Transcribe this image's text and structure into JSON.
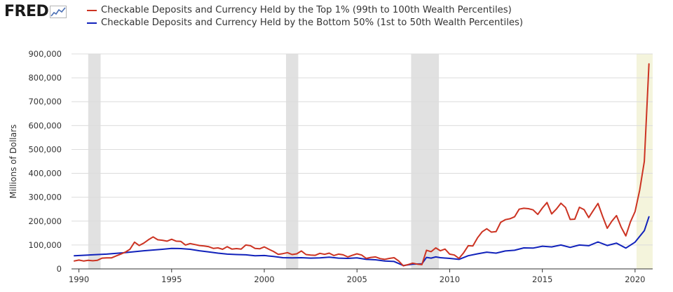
{
  "brand": {
    "logo_text": "FRED",
    "logo_icon": "line-chart-icon"
  },
  "chart_data": {
    "type": "line",
    "title": "",
    "xlabel": "",
    "ylabel": "Millions of Dollars",
    "xlim": [
      1989.6,
      2020.95
    ],
    "ylim": [
      0,
      900000
    ],
    "x_ticks": [
      "1990",
      "1995",
      "2000",
      "2005",
      "2010",
      "2015",
      "2020"
    ],
    "y_ticks": [
      "0",
      "100,000",
      "200,000",
      "300,000",
      "400,000",
      "500,000",
      "600,000",
      "700,000",
      "800,000",
      "900,000"
    ],
    "y_tick_values": [
      0,
      100000,
      200000,
      300000,
      400000,
      500000,
      600000,
      700000,
      800000,
      900000
    ],
    "grid": true,
    "legend_position": "top",
    "recessions": [
      [
        1990.5,
        1991.17
      ],
      [
        2001.17,
        2001.83
      ],
      [
        2007.92,
        2009.42
      ],
      [
        2020.08,
        2020.33
      ]
    ],
    "recession_color": "#e1e1e1",
    "latest_color": "#f4f4dc",
    "series": [
      {
        "name": "Checkable Deposits and Currency Held by the Top 1% (99th to 100th Wealth Percentiles)",
        "color": "#cc3322",
        "points": [
          [
            1989.75,
            33000
          ],
          [
            1990.0,
            37000
          ],
          [
            1990.25,
            33000
          ],
          [
            1990.5,
            36000
          ],
          [
            1990.75,
            34000
          ],
          [
            1991.0,
            36000
          ],
          [
            1991.25,
            45000
          ],
          [
            1991.5,
            46000
          ],
          [
            1991.75,
            46000
          ],
          [
            1992.0,
            54000
          ],
          [
            1992.25,
            62000
          ],
          [
            1992.5,
            70000
          ],
          [
            1992.75,
            82000
          ],
          [
            1993.0,
            112000
          ],
          [
            1993.25,
            98000
          ],
          [
            1993.5,
            108000
          ],
          [
            1993.75,
            122000
          ],
          [
            1994.0,
            134000
          ],
          [
            1994.25,
            122000
          ],
          [
            1994.5,
            120000
          ],
          [
            1994.75,
            116000
          ],
          [
            1995.0,
            124000
          ],
          [
            1995.25,
            116000
          ],
          [
            1995.5,
            115000
          ],
          [
            1995.75,
            100000
          ],
          [
            1996.0,
            106000
          ],
          [
            1996.25,
            102000
          ],
          [
            1996.5,
            98000
          ],
          [
            1996.75,
            96000
          ],
          [
            1997.0,
            93000
          ],
          [
            1997.25,
            86000
          ],
          [
            1997.5,
            88000
          ],
          [
            1997.75,
            82000
          ],
          [
            1998.0,
            93000
          ],
          [
            1998.25,
            83000
          ],
          [
            1998.5,
            85000
          ],
          [
            1998.75,
            83000
          ],
          [
            1999.0,
            100000
          ],
          [
            1999.25,
            97000
          ],
          [
            1999.5,
            86000
          ],
          [
            1999.75,
            84000
          ],
          [
            2000.0,
            92000
          ],
          [
            2000.25,
            82000
          ],
          [
            2000.5,
            73000
          ],
          [
            2000.75,
            61000
          ],
          [
            2001.0,
            64000
          ],
          [
            2001.25,
            68000
          ],
          [
            2001.5,
            60000
          ],
          [
            2001.75,
            63000
          ],
          [
            2002.0,
            75000
          ],
          [
            2002.25,
            60000
          ],
          [
            2002.5,
            58000
          ],
          [
            2002.75,
            57000
          ],
          [
            2003.0,
            65000
          ],
          [
            2003.25,
            61000
          ],
          [
            2003.5,
            66000
          ],
          [
            2003.75,
            56000
          ],
          [
            2004.0,
            62000
          ],
          [
            2004.25,
            59000
          ],
          [
            2004.5,
            50000
          ],
          [
            2004.75,
            57000
          ],
          [
            2005.0,
            63000
          ],
          [
            2005.25,
            58000
          ],
          [
            2005.5,
            44000
          ],
          [
            2005.75,
            48000
          ],
          [
            2006.0,
            50000
          ],
          [
            2006.25,
            43000
          ],
          [
            2006.5,
            40000
          ],
          [
            2006.75,
            44000
          ],
          [
            2007.0,
            47000
          ],
          [
            2007.25,
            33000
          ],
          [
            2007.5,
            13000
          ],
          [
            2007.75,
            18000
          ],
          [
            2008.0,
            24000
          ],
          [
            2008.25,
            20000
          ],
          [
            2008.5,
            18000
          ],
          [
            2008.75,
            78000
          ],
          [
            2009.0,
            72000
          ],
          [
            2009.25,
            88000
          ],
          [
            2009.5,
            76000
          ],
          [
            2009.75,
            83000
          ],
          [
            2010.0,
            62000
          ],
          [
            2010.25,
            58000
          ],
          [
            2010.5,
            44000
          ],
          [
            2010.75,
            67000
          ],
          [
            2011.0,
            97000
          ],
          [
            2011.25,
            96000
          ],
          [
            2011.5,
            130000
          ],
          [
            2011.75,
            155000
          ],
          [
            2012.0,
            168000
          ],
          [
            2012.25,
            154000
          ],
          [
            2012.5,
            156000
          ],
          [
            2012.75,
            195000
          ],
          [
            2013.0,
            206000
          ],
          [
            2013.25,
            210000
          ],
          [
            2013.5,
            218000
          ],
          [
            2013.75,
            250000
          ],
          [
            2014.0,
            254000
          ],
          [
            2014.25,
            252000
          ],
          [
            2014.5,
            247000
          ],
          [
            2014.75,
            228000
          ],
          [
            2015.0,
            255000
          ],
          [
            2015.25,
            278000
          ],
          [
            2015.5,
            230000
          ],
          [
            2015.75,
            250000
          ],
          [
            2016.0,
            275000
          ],
          [
            2016.25,
            257000
          ],
          [
            2016.5,
            207000
          ],
          [
            2016.75,
            208000
          ],
          [
            2017.0,
            258000
          ],
          [
            2017.25,
            248000
          ],
          [
            2017.5,
            215000
          ],
          [
            2017.75,
            245000
          ],
          [
            2018.0,
            274000
          ],
          [
            2018.25,
            220000
          ],
          [
            2018.5,
            170000
          ],
          [
            2018.75,
            200000
          ],
          [
            2019.0,
            223000
          ],
          [
            2019.25,
            175000
          ],
          [
            2019.5,
            138000
          ],
          [
            2019.75,
            197000
          ],
          [
            2020.0,
            240000
          ],
          [
            2020.25,
            330000
          ],
          [
            2020.5,
            450000
          ],
          [
            2020.75,
            858000
          ]
        ]
      },
      {
        "name": "Checkable Deposits and Currency Held by the Bottom 50% (1st to 50th Wealth Percentiles)",
        "color": "#1122bb",
        "points": [
          [
            1989.75,
            55000
          ],
          [
            1990.5,
            58000
          ],
          [
            1991.5,
            62000
          ],
          [
            1992.5,
            68000
          ],
          [
            1993.5,
            76000
          ],
          [
            1994.5,
            82000
          ],
          [
            1995.0,
            86000
          ],
          [
            1995.5,
            85000
          ],
          [
            1996.0,
            82000
          ],
          [
            1996.5,
            76000
          ],
          [
            1997.0,
            71000
          ],
          [
            1997.5,
            66000
          ],
          [
            1998.0,
            62000
          ],
          [
            1998.5,
            60000
          ],
          [
            1999.0,
            59000
          ],
          [
            1999.5,
            55000
          ],
          [
            2000.0,
            56000
          ],
          [
            2000.5,
            52000
          ],
          [
            2001.0,
            47000
          ],
          [
            2001.5,
            46000
          ],
          [
            2002.0,
            47000
          ],
          [
            2002.5,
            45000
          ],
          [
            2003.0,
            46000
          ],
          [
            2003.5,
            49000
          ],
          [
            2004.0,
            45000
          ],
          [
            2004.5,
            44000
          ],
          [
            2005.0,
            46000
          ],
          [
            2005.5,
            40000
          ],
          [
            2006.0,
            38000
          ],
          [
            2006.5,
            33000
          ],
          [
            2007.0,
            31000
          ],
          [
            2007.5,
            14000
          ],
          [
            2008.0,
            20000
          ],
          [
            2008.5,
            21000
          ],
          [
            2008.75,
            48000
          ],
          [
            2009.0,
            45000
          ],
          [
            2009.25,
            50000
          ],
          [
            2009.5,
            47000
          ],
          [
            2010.0,
            44000
          ],
          [
            2010.5,
            40000
          ],
          [
            2011.0,
            55000
          ],
          [
            2011.5,
            63000
          ],
          [
            2012.0,
            70000
          ],
          [
            2012.5,
            66000
          ],
          [
            2013.0,
            75000
          ],
          [
            2013.5,
            78000
          ],
          [
            2014.0,
            88000
          ],
          [
            2014.5,
            87000
          ],
          [
            2015.0,
            95000
          ],
          [
            2015.5,
            92000
          ],
          [
            2016.0,
            100000
          ],
          [
            2016.5,
            90000
          ],
          [
            2017.0,
            100000
          ],
          [
            2017.5,
            97000
          ],
          [
            2018.0,
            113000
          ],
          [
            2018.5,
            98000
          ],
          [
            2019.0,
            108000
          ],
          [
            2019.5,
            87000
          ],
          [
            2020.0,
            112000
          ],
          [
            2020.5,
            160000
          ],
          [
            2020.75,
            218000
          ]
        ]
      }
    ]
  }
}
